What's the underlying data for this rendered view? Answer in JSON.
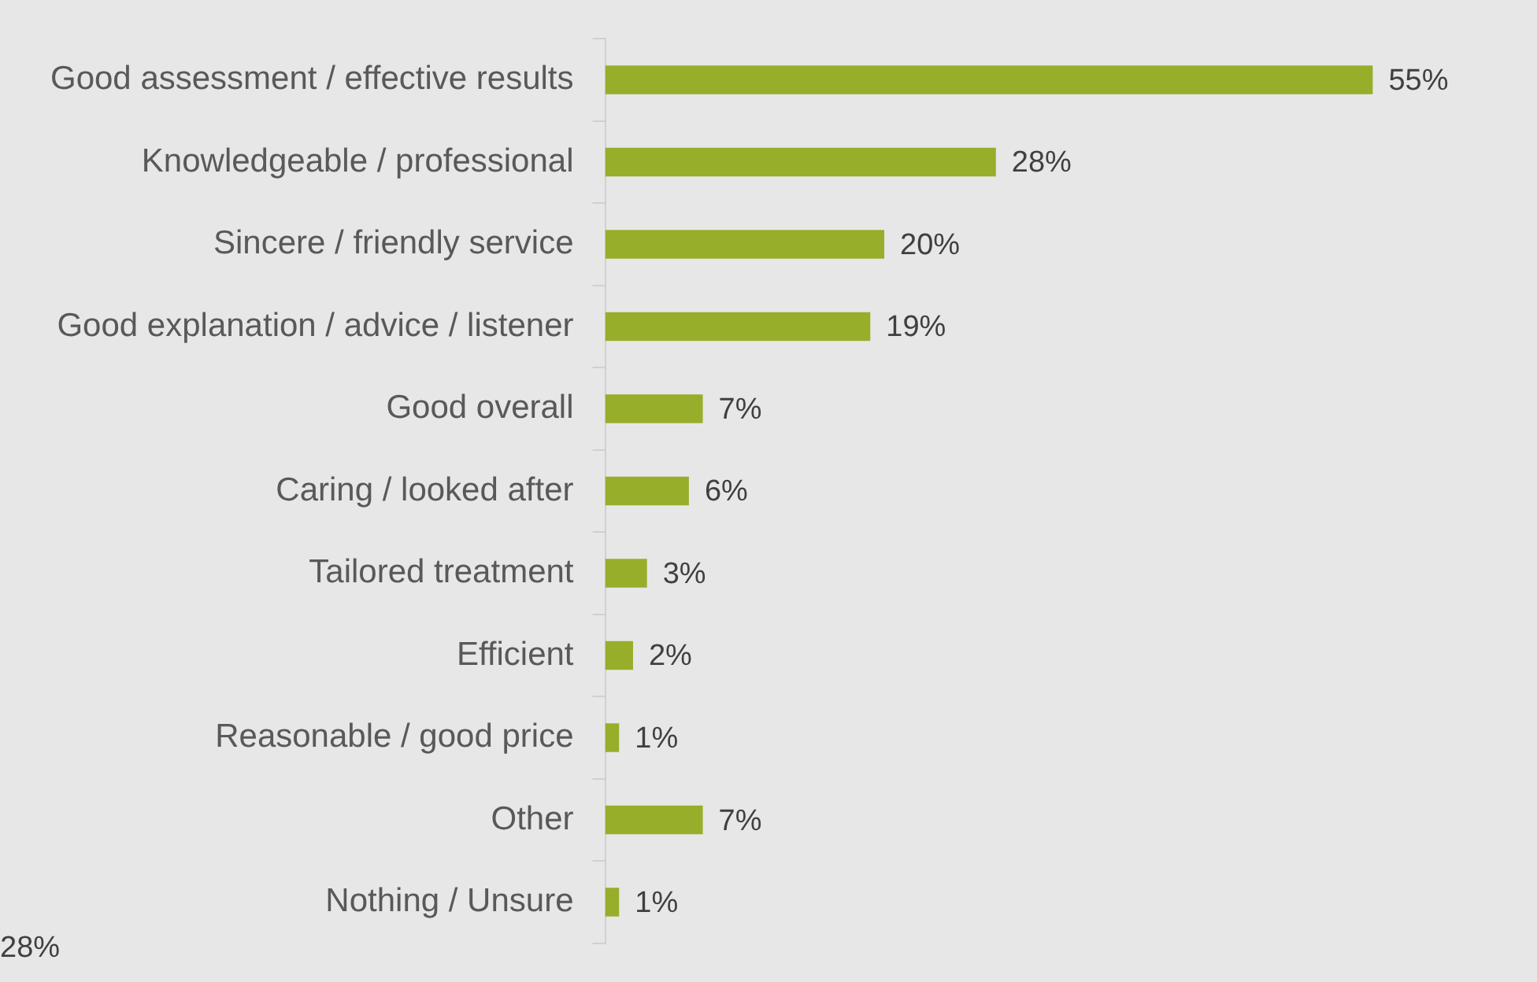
{
  "chart_data": {
    "type": "bar",
    "orientation": "horizontal",
    "categories": [
      "Good assessment / effective results",
      "Knowledgeable / professional",
      "Sincere / friendly service",
      "Good explanation / advice / listener",
      "Good overall",
      "Caring / looked after",
      "Tailored treatment",
      "Efficient",
      "Reasonable / good price",
      "Other",
      "Nothing / Unsure"
    ],
    "values": [
      55,
      28,
      20,
      19,
      7,
      6,
      3,
      2,
      1,
      7,
      1
    ],
    "value_labels": [
      "55%",
      "28%",
      "20%",
      "19%",
      "7%",
      "6%",
      "3%",
      "2%",
      "1%",
      "7%",
      "1%"
    ],
    "color": "#97ae2b",
    "annotations": [
      "28%"
    ]
  }
}
